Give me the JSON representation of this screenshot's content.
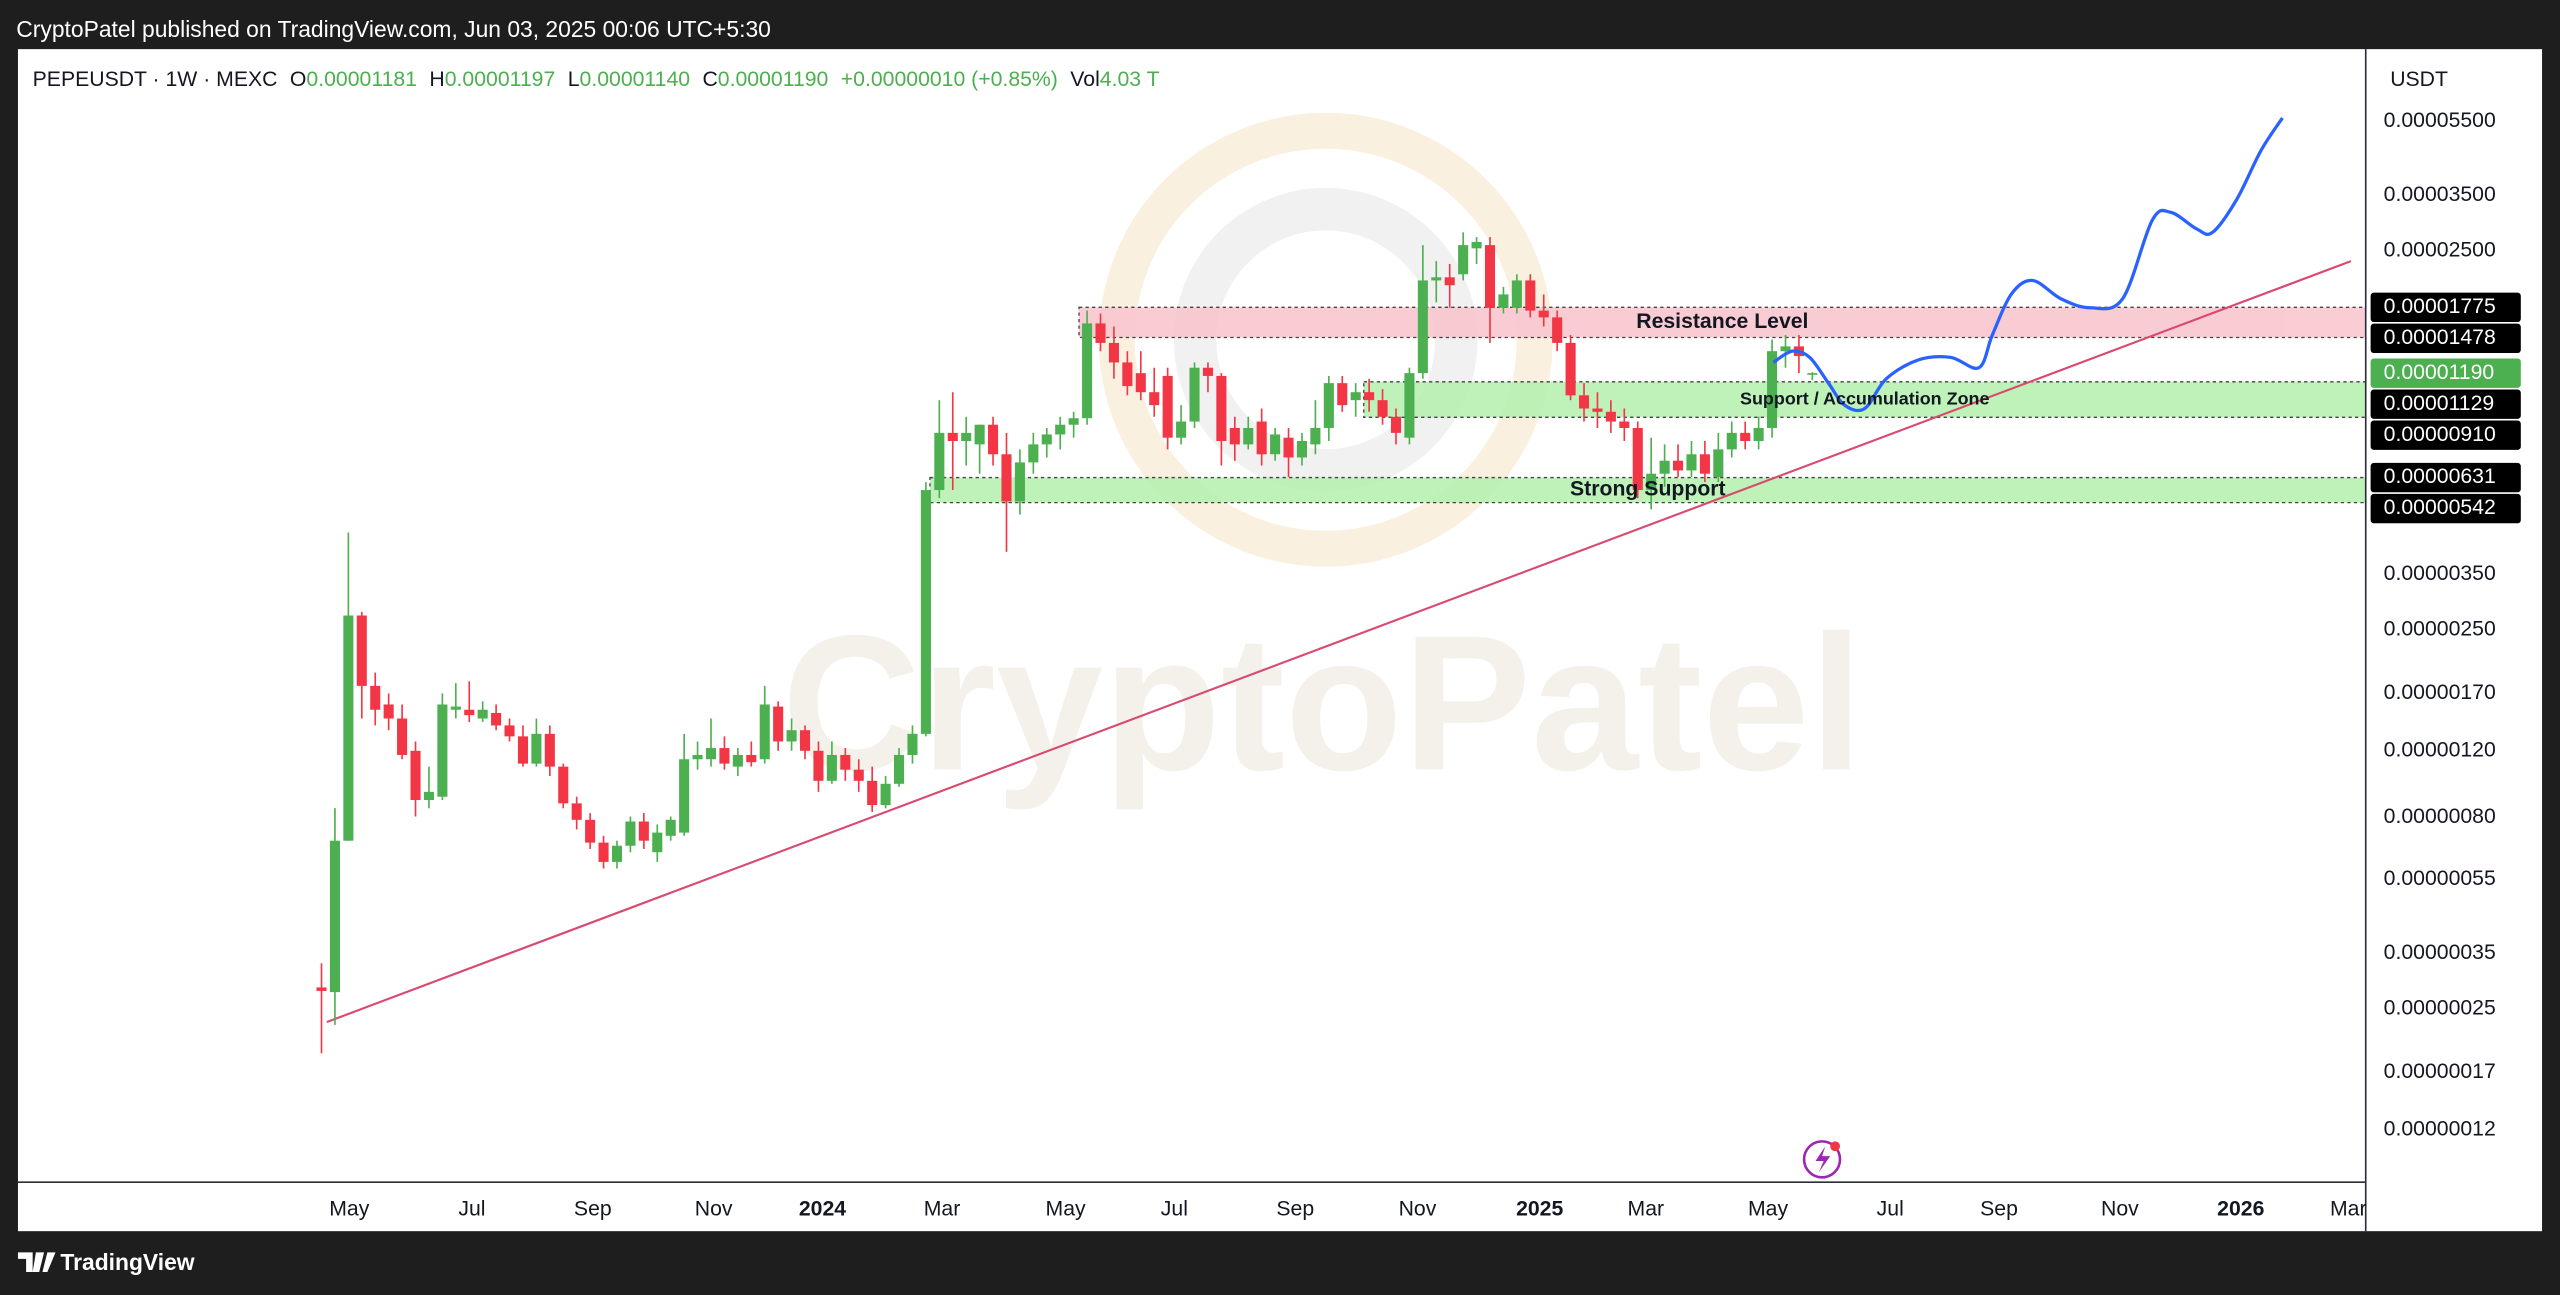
{
  "top_bar": "CryptoPatel published on TradingView.com, Jun 03, 2025 00:06 UTC+5:30",
  "footer": "TradingView",
  "chart_data": {
    "type": "candlestick",
    "header": {
      "symbol": "PEPEUSDT · 1W · MEXC",
      "o_label": "O",
      "open": "0.00001181",
      "h_label": "H",
      "high": "0.00001197",
      "l_label": "L",
      "low": "0.00001140",
      "c_label": "C",
      "close": "0.00001190",
      "change": "+0.00000010 (+0.85%)",
      "vol_label": "Vol",
      "volume": "4.03 T"
    },
    "currency": "USDT",
    "watermark": "CryptoPatel",
    "up_color": "#4caf50",
    "down_color": "#f23645",
    "log_y": true,
    "grid": false,
    "xlim": [
      -22.6,
      152.2
    ],
    "ylim": [
      8.73e-08,
      8.52e-05
    ],
    "xticks": [
      {
        "value": 2.07,
        "label": "May"
      },
      {
        "value": 11.2,
        "label": "Jul"
      },
      {
        "value": 20.2,
        "label": "Sep"
      },
      {
        "value": 29.2,
        "label": "Nov"
      },
      {
        "value": 37.3,
        "label": "2024"
      },
      {
        "value": 46.2,
        "label": "Mar"
      },
      {
        "value": 55.4,
        "label": "May"
      },
      {
        "value": 63.5,
        "label": "Jul"
      },
      {
        "value": 72.5,
        "label": "Sep"
      },
      {
        "value": 81.6,
        "label": "Nov"
      },
      {
        "value": 90.7,
        "label": "2025"
      },
      {
        "value": 98.6,
        "label": "Mar"
      },
      {
        "value": 107.7,
        "label": "May"
      },
      {
        "value": 116.8,
        "label": "Jul"
      },
      {
        "value": 124.9,
        "label": "Sep"
      },
      {
        "value": 133.9,
        "label": "Nov"
      },
      {
        "value": 142.9,
        "label": "2026"
      },
      {
        "value": 150.9,
        "label": "Mar"
      }
    ],
    "yticks": [
      {
        "value": 5.5e-05,
        "label": "0.00005500"
      },
      {
        "value": 3.5e-05,
        "label": "0.00003500"
      },
      {
        "value": 2.5e-05,
        "label": "0.00002500"
      },
      {
        "value": 3.5e-06,
        "label": "0.00000350"
      },
      {
        "value": 2.5e-06,
        "label": "0.00000250"
      },
      {
        "value": 1.7e-06,
        "label": "0.00000170"
      },
      {
        "value": 1.2e-06,
        "label": "0.00000120"
      },
      {
        "value": 8e-07,
        "label": "0.00000080"
      },
      {
        "value": 5.5e-07,
        "label": "0.00000055"
      },
      {
        "value": 3.5e-07,
        "label": "0.00000035"
      },
      {
        "value": 2.5e-07,
        "label": "0.00000025"
      },
      {
        "value": 1.7e-07,
        "label": "0.00000017"
      },
      {
        "value": 1.2e-07,
        "label": "0.00000012"
      }
    ],
    "candles": [
      [
        2.85e-07,
        3.3e-07,
        1.91e-07,
        2.79e-07
      ],
      [
        2.77e-07,
        8.47e-07,
        2.27e-07,
        6.95e-07
      ],
      [
        6.95e-07,
        4.52e-06,
        6.95e-07,
        2.73e-06
      ],
      [
        2.73e-06,
        2.79e-06,
        1.46e-06,
        1.78e-06
      ],
      [
        1.78e-06,
        1.93e-06,
        1.4e-06,
        1.54e-06
      ],
      [
        1.59e-06,
        1.7e-06,
        1.36e-06,
        1.46e-06
      ],
      [
        1.46e-06,
        1.59e-06,
        1.14e-06,
        1.17e-06
      ],
      [
        1.2e-06,
        1.27e-06,
        8.05e-07,
        8.9e-07
      ],
      [
        8.9e-07,
        1.09e-06,
        8.46e-07,
        9.35e-07
      ],
      [
        9.08e-07,
        1.7e-06,
        8.9e-07,
        1.59e-06
      ],
      [
        1.54e-06,
        1.81e-06,
        1.46e-06,
        1.57e-06
      ],
      [
        1.54e-06,
        1.83e-06,
        1.43e-06,
        1.49e-06
      ],
      [
        1.46e-06,
        1.62e-06,
        1.43e-06,
        1.54e-06
      ],
      [
        1.51e-06,
        1.59e-06,
        1.36e-06,
        1.4e-06
      ],
      [
        1.4e-06,
        1.46e-06,
        1.27e-06,
        1.31e-06
      ],
      [
        1.31e-06,
        1.4e-06,
        1.09e-06,
        1.11e-06
      ],
      [
        1.11e-06,
        1.46e-06,
        1.09e-06,
        1.33e-06
      ],
      [
        1.33e-06,
        1.4e-06,
        1.03e-06,
        1.09e-06
      ],
      [
        1.09e-06,
        1.11e-06,
        8.46e-07,
        8.72e-07
      ],
      [
        8.72e-07,
        9.08e-07,
        7.44e-07,
        7.89e-07
      ],
      [
        7.89e-07,
        8.22e-07,
        6.61e-07,
        6.87e-07
      ],
      [
        6.87e-07,
        7.16e-07,
        5.87e-07,
        6.11e-07
      ],
      [
        6.11e-07,
        6.95e-07,
        5.87e-07,
        6.74e-07
      ],
      [
        6.74e-07,
        8.05e-07,
        6.48e-07,
        7.81e-07
      ],
      [
        7.81e-07,
        8.22e-07,
        6.61e-07,
        6.95e-07
      ],
      [
        6.48e-07,
        7.67e-07,
        6.11e-07,
        7.3e-07
      ],
      [
        7.16e-07,
        8.05e-07,
        6.95e-07,
        7.89e-07
      ],
      [
        7.3e-07,
        1.33e-06,
        7.16e-07,
        1.14e-06
      ],
      [
        1.14e-06,
        1.27e-06,
        1.07e-06,
        1.17e-06
      ],
      [
        1.14e-06,
        1.46e-06,
        1.09e-06,
        1.22e-06
      ],
      [
        1.22e-06,
        1.31e-06,
        1.07e-06,
        1.11e-06
      ],
      [
        1.09e-06,
        1.22e-06,
        1.03e-06,
        1.17e-06
      ],
      [
        1.17e-06,
        1.27e-06,
        1.09e-06,
        1.12e-06
      ],
      [
        1.14e-06,
        1.78e-06,
        1.11e-06,
        1.59e-06
      ],
      [
        1.57e-06,
        1.62e-06,
        1.2e-06,
        1.27e-06
      ],
      [
        1.27e-06,
        1.46e-06,
        1.2e-06,
        1.36e-06
      ],
      [
        1.36e-06,
        1.4e-06,
        1.14e-06,
        1.2e-06
      ],
      [
        1.2e-06,
        1.27e-06,
        9.35e-07,
        1e-06
      ],
      [
        1e-06,
        1.27e-06,
        9.82e-07,
        1.17e-06
      ],
      [
        1.17e-06,
        1.22e-06,
        1e-06,
        1.07e-06
      ],
      [
        1.07e-06,
        1.14e-06,
        9.35e-07,
        1e-06
      ],
      [
        1e-06,
        1.09e-06,
        8.28e-07,
        8.63e-07
      ],
      [
        8.63e-07,
        1.03e-06,
        8.46e-07,
        9.82e-07
      ],
      [
        9.82e-07,
        1.22e-06,
        9.64e-07,
        1.17e-06
      ],
      [
        1.17e-06,
        1.4e-06,
        1.11e-06,
        1.33e-06
      ],
      [
        1.33e-06,
        6.14e-06,
        1.31e-06,
        5.85e-06
      ],
      [
        5.85e-06,
        1.01e-05,
        5.57e-06,
        8.28e-06
      ],
      [
        8.28e-06,
        1.06e-05,
        5.85e-06,
        7.88e-06
      ],
      [
        7.88e-06,
        9.13e-06,
        6.79e-06,
        8.28e-06
      ],
      [
        7.72e-06,
        8.7e-06,
        6.46e-06,
        8.7e-06
      ],
      [
        8.7e-06,
        9.13e-06,
        6.79e-06,
        7.27e-06
      ],
      [
        7.27e-06,
        8.28e-06,
        4.02e-06,
        5.46e-06
      ],
      [
        5.46e-06,
        7.49e-06,
        5.04e-06,
        6.92e-06
      ],
      [
        6.92e-06,
        8.28e-06,
        6.46e-06,
        7.72e-06
      ],
      [
        7.72e-06,
        8.53e-06,
        7.13e-06,
        8.2e-06
      ],
      [
        8.2e-06,
        9.13e-06,
        7.49e-06,
        8.7e-06
      ],
      [
        8.7e-06,
        9.41e-06,
        8.04e-06,
        9.05e-06
      ],
      [
        9.05e-06,
        1.74e-05,
        8.7e-06,
        1.61e-05
      ],
      [
        1.61e-05,
        1.71e-05,
        1.36e-05,
        1.43e-05
      ],
      [
        1.43e-05,
        1.58e-05,
        1.15e-05,
        1.27e-05
      ],
      [
        1.27e-05,
        1.36e-05,
        1.04e-05,
        1.1e-05
      ],
      [
        1.19e-05,
        1.36e-05,
        1.01e-05,
        1.06e-05
      ],
      [
        1.06e-05,
        1.23e-05,
        9.13e-06,
        9.8e-06
      ],
      [
        1.17e-05,
        1.23e-05,
        7.49e-06,
        8.04e-06
      ],
      [
        8.04e-06,
        9.8e-06,
        7.72e-06,
        8.87e-06
      ],
      [
        8.87e-06,
        1.27e-05,
        8.53e-06,
        1.23e-05
      ],
      [
        1.23e-05,
        1.27e-05,
        1.06e-05,
        1.17e-05
      ],
      [
        1.17e-05,
        1.19e-05,
        6.79e-06,
        7.88e-06
      ],
      [
        8.53e-06,
        9.13e-06,
        6.99e-06,
        7.72e-06
      ],
      [
        7.72e-06,
        9.13e-06,
        7.49e-06,
        8.53e-06
      ],
      [
        8.87e-06,
        9.6e-06,
        6.79e-06,
        7.27e-06
      ],
      [
        7.27e-06,
        8.53e-06,
        6.99e-06,
        8.2e-06
      ],
      [
        8.04e-06,
        8.53e-06,
        6.33e-06,
        7.13e-06
      ],
      [
        7.13e-06,
        8.28e-06,
        6.79e-06,
        7.88e-06
      ],
      [
        7.72e-06,
        1.01e-05,
        7.27e-06,
        8.53e-06
      ],
      [
        8.53e-06,
        1.17e-05,
        7.88e-06,
        1.12e-05
      ],
      [
        1.12e-05,
        1.17e-05,
        9.41e-06,
        9.8e-06
      ],
      [
        1.01e-05,
        1.12e-05,
        9.13e-06,
        1.06e-05
      ],
      [
        1.06e-05,
        1.15e-05,
        9.41e-06,
        1.01e-05
      ],
      [
        1.01e-05,
        1.08e-05,
        8.7e-06,
        9.13e-06
      ],
      [
        9.13e-06,
        9.6e-06,
        7.72e-06,
        8.28e-06
      ],
      [
        8.04e-06,
        1.23e-05,
        7.72e-06,
        1.19e-05
      ],
      [
        1.19e-05,
        2.59e-05,
        1.15e-05,
        2.09e-05
      ],
      [
        2.09e-05,
        2.35e-05,
        1.83e-05,
        2.13e-05
      ],
      [
        2.13e-05,
        2.31e-05,
        1.77e-05,
        2.03e-05
      ],
      [
        2.17e-05,
        2.8e-05,
        2.09e-05,
        2.59e-05
      ],
      [
        2.54e-05,
        2.72e-05,
        2.31e-05,
        2.64e-05
      ],
      [
        2.59e-05,
        2.72e-05,
        1.43e-05,
        1.77e-05
      ],
      [
        1.77e-05,
        2.01e-05,
        1.71e-05,
        1.92e-05
      ],
      [
        1.77e-05,
        2.17e-05,
        1.71e-05,
        2.09e-05
      ],
      [
        2.09e-05,
        2.17e-05,
        1.67e-05,
        1.74e-05
      ],
      [
        1.74e-05,
        1.92e-05,
        1.58e-05,
        1.67e-05
      ],
      [
        1.67e-05,
        1.74e-05,
        1.36e-05,
        1.43e-05
      ],
      [
        1.43e-05,
        1.5e-05,
        1.01e-05,
        1.04e-05
      ],
      [
        1.04e-05,
        1.12e-05,
        8.87e-06,
        9.6e-06
      ],
      [
        9.6e-06,
        1.06e-05,
        8.53e-06,
        9.41e-06
      ],
      [
        9.41e-06,
        1.01e-05,
        8.28e-06,
        8.87e-06
      ],
      [
        8.87e-06,
        9.6e-06,
        7.88e-06,
        8.53e-06
      ],
      [
        8.53e-06,
        8.87e-06,
        5.57e-06,
        5.85e-06
      ],
      [
        5.85e-06,
        8.04e-06,
        5.2e-06,
        6.46e-06
      ],
      [
        6.46e-06,
        7.72e-06,
        5.96e-06,
        6.99e-06
      ],
      [
        6.99e-06,
        7.72e-06,
        6.33e-06,
        6.59e-06
      ],
      [
        6.59e-06,
        7.88e-06,
        6.33e-06,
        7.27e-06
      ],
      [
        7.27e-06,
        7.88e-06,
        6.14e-06,
        6.46e-06
      ],
      [
        6.33e-06,
        8.28e-06,
        6.14e-06,
        7.49e-06
      ],
      [
        7.49e-06,
        8.87e-06,
        7.13e-06,
        8.28e-06
      ],
      [
        8.28e-06,
        8.87e-06,
        7.49e-06,
        7.88e-06
      ],
      [
        7.88e-06,
        9.13e-06,
        7.49e-06,
        8.53e-06
      ],
      [
        8.53e-06,
        1.46e-05,
        8.04e-06,
        1.36e-05
      ],
      [
        1.36e-05,
        1.5e-05,
        1.23e-05,
        1.4e-05
      ],
      [
        1.4e-05,
        1.5e-05,
        1.19e-05,
        1.32e-05
      ],
      [
        1.181e-05,
        1.197e-05,
        1.14e-05,
        1.19e-05
      ]
    ],
    "last_price_label": "0.00001190",
    "zones": [
      {
        "name": "Resistance Level",
        "color": "#f9c4cd",
        "x_start": 56.4,
        "levels": [
          {
            "value": 1.775e-05,
            "label": "0.00001775"
          },
          {
            "value": 1.478e-05,
            "label": "0.00001478"
          }
        ]
      },
      {
        "name": "Support / Accumulation Zone",
        "color": "#b3f0ad",
        "x_start": 77.6,
        "levels": [
          {
            "value": 1.129e-05,
            "label": "0.00001129"
          },
          {
            "value": 9.1e-06,
            "label": "0.00000910"
          }
        ]
      },
      {
        "name": "Strong Support",
        "color": "#b3f0ad",
        "x_start": 45.3,
        "levels": [
          {
            "value": 6.31e-06,
            "label": "0.00000631"
          },
          {
            "value": 5.42e-06,
            "label": "0.00000542"
          }
        ]
      }
    ],
    "trendline": {
      "color": "#d94a6e",
      "x": [
        0.4,
        151.1
      ],
      "values": [
        2.31e-07,
        2.35e-05
      ]
    },
    "projection": {
      "color": "#2962ff",
      "x": [
        108.1,
        109.5,
        110.8,
        112.2,
        113.4,
        114.9,
        116.5,
        118.9,
        121.3,
        123.4,
        124.4,
        125.8,
        127.4,
        129.5,
        131.7,
        134.1,
        136.3,
        137.7,
        139.6,
        140.8,
        142.6,
        144.4,
        146.0
      ],
      "values": [
        1.27e-05,
        1.36e-05,
        1.31e-05,
        1.12e-05,
        9.8e-06,
        9.6e-06,
        1.15e-05,
        1.29e-05,
        1.31e-05,
        1.23e-05,
        1.5e-05,
        1.92e-05,
        2.09e-05,
        1.87e-05,
        1.77e-05,
        1.87e-05,
        3.01e-05,
        3.16e-05,
        2.86e-05,
        2.8e-05,
        3.42e-05,
        4.6e-05,
        5.61e-05
      ]
    }
  }
}
